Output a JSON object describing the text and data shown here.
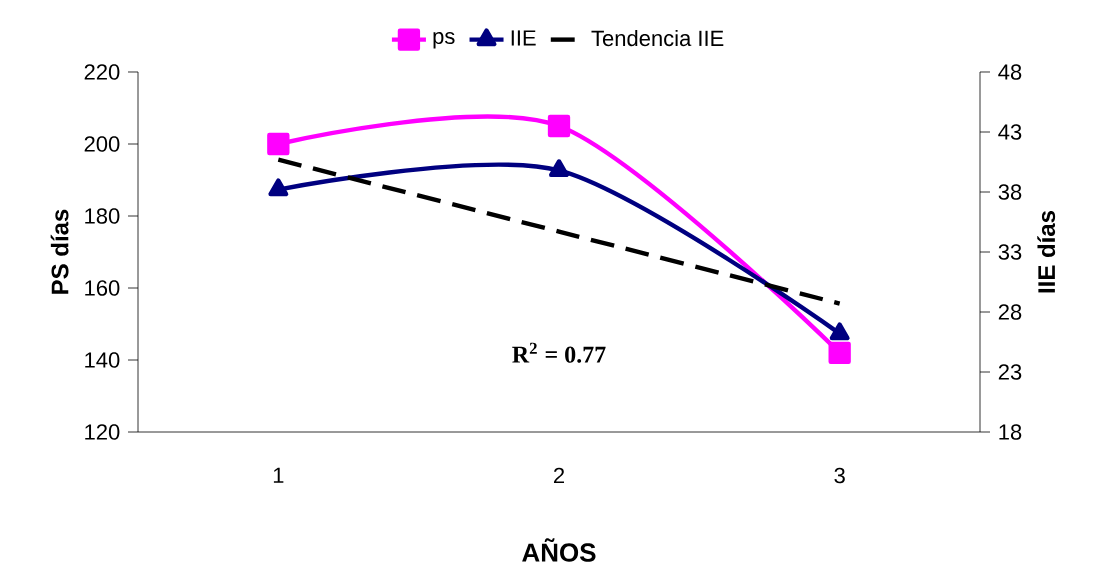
{
  "chart_data": {
    "type": "line",
    "xlabel": "AÑOS",
    "ylabel": "PS días",
    "y2label": "IIE días",
    "categories": [
      "1",
      "2",
      "3"
    ],
    "series": [
      {
        "name": "ps",
        "color": "#ff00ff",
        "values": [
          200,
          205,
          142
        ],
        "marker": "square",
        "line_style": "solid"
      },
      {
        "name": "IIE",
        "color": "#000080",
        "values": [
          38.2,
          39.8,
          26.2
        ],
        "axis": "y2",
        "marker": "triangle",
        "line_style": "solid"
      },
      {
        "name": "Tendencia IIE",
        "color": "#000000",
        "values": [
          40.7,
          34.7,
          28.7
        ],
        "axis": "y2",
        "marker": "none",
        "line_style": "dashed"
      }
    ],
    "ylim": [
      120,
      220
    ],
    "yticks": [
      120,
      140,
      160,
      180,
      200,
      220
    ],
    "y2lim": [
      18,
      48
    ],
    "y2ticks": [
      18,
      23,
      28,
      33,
      38,
      43,
      48
    ],
    "annotations": [
      "**R$^{2}$ = 0.77**"
    ],
    "legend": "top",
    "grid": false
  }
}
